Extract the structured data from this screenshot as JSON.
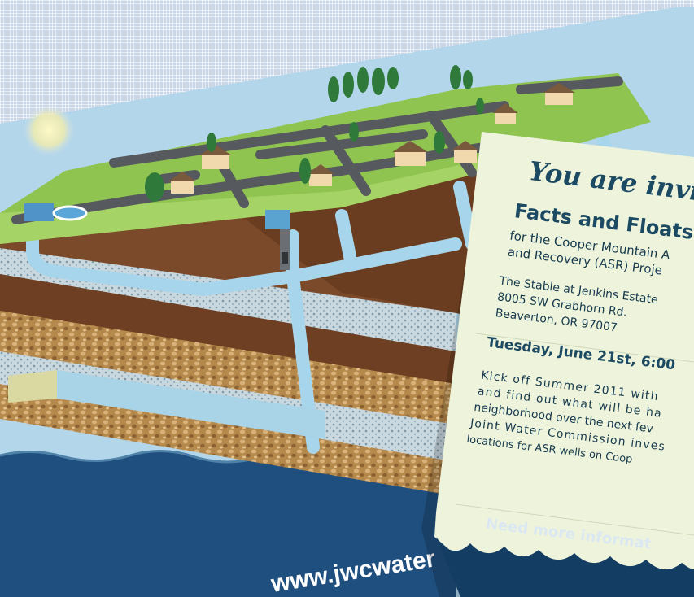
{
  "postcard": {
    "website": "www.jwcwater"
  },
  "invitation": {
    "heading": "You are invited",
    "event_title": "Facts and Floats C",
    "subtitle_line1": "for the Cooper Mountain A",
    "subtitle_line2": "and Recovery (ASR) Proje",
    "venue": "The Stable at Jenkins Estate",
    "address": "8005 SW Grabhorn Rd.",
    "city": "Beaverton, OR 97007",
    "date_time": "Tuesday, June 21st, 6:00",
    "body_line1": "Kick off Summer 2011 with",
    "body_line2": "and find out what will be ha",
    "body_line3": "neighborhood over the next fev",
    "body_line4": "Joint Water Commission inves",
    "body_line5": "locations for ASR wells on Coop",
    "footer": "Need more informat"
  },
  "colors": {
    "sky": "#a9cfe6",
    "grass": "#8cc04e",
    "road": "#55585c",
    "soil": "#7a4a2a",
    "gravel": "#b98a4e",
    "water_pipe": "#9dd0e8",
    "sea": "#1b4a78",
    "card": "#eef4dc",
    "card_footer": "#143d63"
  }
}
